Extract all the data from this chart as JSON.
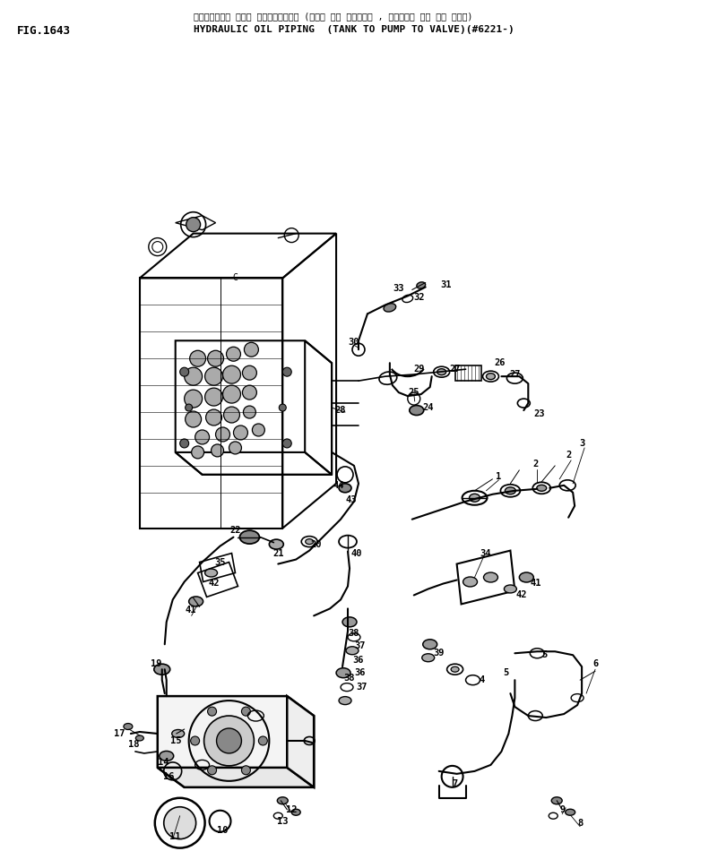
{
  "title_line1": "ハイト゚ロック オイル パイピンク゚ (タンク から ポンプ゚ , ポンプ゚ から パ ルプ)",
  "title_line2": "HYDRAULIC OIL PIPING  (TANK TO PUMP TO VALVE)(#6221-)",
  "fig_label": "FIG.1643",
  "bg_color": "#ffffff",
  "line_color": "#000000",
  "text_color": "#000000",
  "figsize": [
    7.91,
    9.5
  ],
  "dpi": 100
}
